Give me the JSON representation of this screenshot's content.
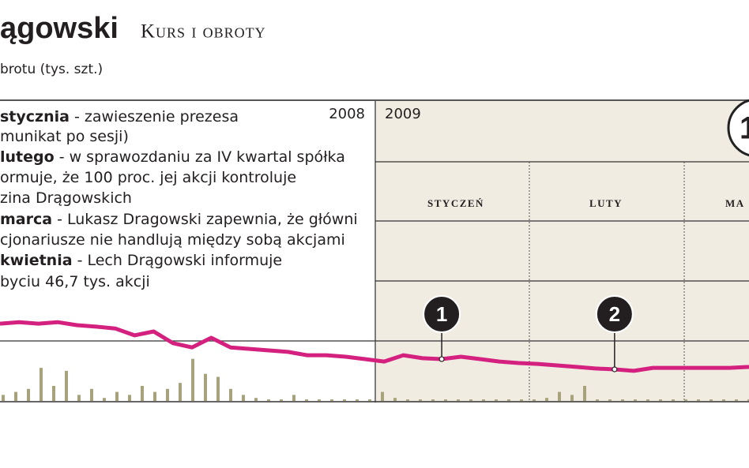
{
  "chart_data": {
    "type": "line",
    "title": "ągowski",
    "subtitle": "Kurs i obroty",
    "unit_label": "brotu (tys. szt.)",
    "years": [
      "2008",
      "2009"
    ],
    "months": [
      "STYCZEŃ",
      "LUTY",
      "MA"
    ],
    "badge": "1",
    "notes": [
      {
        "bold": "stycznia",
        "text": " - zawieszenie prezesa"
      },
      {
        "text": "munikat po sesji)"
      },
      {
        "bold": "lutego",
        "text": " - w sprawozdaniu za IV kwartal spółka"
      },
      {
        "text": "ormuje, że 100 proc. jej akcji kontroluje"
      },
      {
        "text": "zina Drągowskich"
      },
      {
        "bold": "marca",
        "text": " - Lukasz Dragowski zapewnia, że główni"
      },
      {
        "text": "cjonariusze nie handlują między sobą akcjami"
      },
      {
        "bold": "kwietnia",
        "text": " - Lech Drągowski informuje"
      },
      {
        "text": "byciu 46,7 tys. akcji"
      }
    ],
    "markers": [
      "1",
      "2"
    ],
    "color": "#d4207e",
    "ylim": [
      0,
      100
    ],
    "values": [
      25.7,
      26.2,
      25.7,
      26.2,
      25.2,
      24.7,
      24.1,
      21.8,
      23.1,
      19.2,
      17.8,
      21.0,
      17.8,
      17.3,
      16.8,
      16.3,
      15.2,
      15.2,
      14.7,
      13.9,
      13.1,
      15.2,
      14.2,
      13.9,
      14.7,
      13.9,
      13.1,
      12.6,
      12.3,
      11.8,
      11.3,
      10.8,
      10.5,
      10.0,
      11.0,
      11.0,
      11.0,
      11.0,
      11.0,
      11.3
    ],
    "volume": {
      "color": "#a8a27c",
      "values": [
        2,
        3,
        4,
        11,
        5,
        10,
        2,
        4,
        1,
        3,
        2,
        5,
        3,
        4,
        6,
        14,
        9,
        8,
        4,
        2,
        1,
        0.5,
        0.5,
        2,
        0.5,
        0.5,
        0.5,
        0.5,
        0.5,
        0.5,
        3,
        1,
        0.5,
        0.5,
        0.5,
        0.5,
        0.5,
        0.5,
        0.5,
        0.5,
        0.5,
        0.5,
        0.5,
        1,
        3,
        2,
        5,
        0.5,
        0.5,
        0.5,
        0.5,
        0.5,
        0.5,
        0.5,
        0.5,
        0.5,
        0.5,
        0.5,
        0.5,
        0.5
      ]
    }
  }
}
